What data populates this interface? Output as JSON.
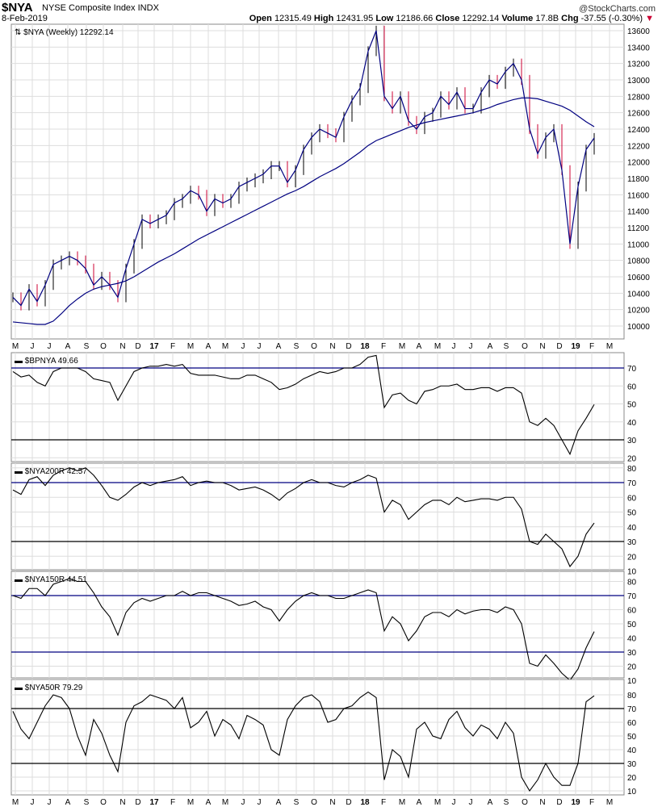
{
  "header": {
    "symbol": "$NYA",
    "name": "NYSE Composite Index",
    "exchange": "INDX",
    "date": "8-Feb-2019",
    "copyright": "@StockCharts.com",
    "open_label": "Open",
    "open": "12315.49",
    "high_label": "High",
    "high": "12431.95",
    "low_label": "Low",
    "low": "12186.66",
    "close_label": "Close",
    "close": "12292.14",
    "volume_label": "Volume",
    "volume": "17.8B",
    "chg_label": "Chg",
    "chg": "-37.55 (-0.30%)",
    "down_color": "#cc0033"
  },
  "chart_data": [
    {
      "type": "line",
      "title": "$NYA (Weekly) 12292.14",
      "x_start": "2016-05",
      "interval": "2 weeks",
      "ylim": [
        9900,
        13700
      ],
      "yticks": [
        10000,
        10200,
        10400,
        10600,
        10800,
        11000,
        11200,
        11400,
        11600,
        11800,
        12000,
        12200,
        12400,
        12600,
        12800,
        13000,
        13200,
        13400,
        13600
      ],
      "series": [
        {
          "name": "$NYA close",
          "color": "#000080",
          "values": [
            10350,
            10250,
            10450,
            10300,
            10500,
            10750,
            10800,
            10850,
            10800,
            10700,
            10500,
            10600,
            10500,
            10350,
            10700,
            11000,
            11300,
            11250,
            11300,
            11350,
            11500,
            11550,
            11650,
            11600,
            11400,
            11550,
            11500,
            11550,
            11700,
            11750,
            11800,
            11850,
            11950,
            11950,
            11750,
            11900,
            12150,
            12300,
            12400,
            12350,
            12300,
            12550,
            12750,
            12900,
            13350,
            13600,
            12800,
            12650,
            12800,
            12500,
            12400,
            12550,
            12600,
            12800,
            12700,
            12850,
            12650,
            12650,
            12850,
            13000,
            12950,
            13100,
            13200,
            13000,
            12400,
            12100,
            12300,
            12400,
            11900,
            11000,
            11700,
            12150,
            12292
          ]
        },
        {
          "name": "40-week MA",
          "color": "#000080",
          "values": [
            10050,
            10040,
            10030,
            10020,
            10020,
            10060,
            10150,
            10250,
            10330,
            10400,
            10450,
            10480,
            10500,
            10520,
            10550,
            10600,
            10660,
            10720,
            10780,
            10830,
            10880,
            10940,
            11000,
            11060,
            11110,
            11160,
            11210,
            11260,
            11310,
            11360,
            11410,
            11460,
            11510,
            11560,
            11610,
            11650,
            11700,
            11760,
            11820,
            11870,
            11920,
            11980,
            12050,
            12120,
            12200,
            12260,
            12300,
            12340,
            12380,
            12420,
            12450,
            12480,
            12500,
            12520,
            12540,
            12560,
            12580,
            12600,
            12630,
            12660,
            12700,
            12730,
            12760,
            12780,
            12780,
            12770,
            12740,
            12710,
            12680,
            12630,
            12560,
            12490,
            12430
          ]
        }
      ]
    },
    {
      "type": "line",
      "title": "$BPNYA 49.66",
      "ylim": [
        18,
        82
      ],
      "yticks": [
        20,
        30,
        40,
        50,
        60,
        70
      ],
      "ref_lines": [
        {
          "value": 70,
          "color": "#000080"
        },
        {
          "value": 30,
          "color": "#000000"
        }
      ],
      "values": [
        68,
        65,
        66,
        62,
        60,
        68,
        70,
        70,
        70,
        68,
        64,
        63,
        62,
        52,
        60,
        68,
        70,
        71,
        71,
        72,
        71,
        72,
        67,
        66,
        66,
        66,
        65,
        64,
        64,
        66,
        66,
        64,
        62,
        58,
        59,
        61,
        64,
        66,
        68,
        67,
        68,
        70,
        70,
        72,
        76,
        77,
        48,
        55,
        56,
        52,
        50,
        57,
        58,
        60,
        60,
        61,
        58,
        58,
        59,
        59,
        57,
        59,
        59,
        56,
        40,
        38,
        42,
        38,
        30,
        22,
        35,
        42,
        49.66
      ]
    },
    {
      "type": "line",
      "title": "$NYA200R 42.57",
      "ylim": [
        8,
        86
      ],
      "yticks": [
        10,
        20,
        30,
        40,
        50,
        60,
        70,
        80
      ],
      "ref_lines": [
        {
          "value": 70,
          "color": "#000080"
        },
        {
          "value": 30,
          "color": "#000000"
        }
      ],
      "values": [
        65,
        62,
        72,
        74,
        68,
        75,
        78,
        80,
        78,
        80,
        75,
        68,
        60,
        58,
        62,
        67,
        70,
        68,
        70,
        71,
        72,
        74,
        68,
        70,
        71,
        70,
        70,
        68,
        65,
        66,
        67,
        65,
        62,
        58,
        63,
        66,
        70,
        72,
        70,
        70,
        68,
        67,
        70,
        72,
        75,
        73,
        50,
        58,
        55,
        45,
        50,
        55,
        58,
        58,
        55,
        60,
        57,
        58,
        59,
        59,
        58,
        60,
        60,
        52,
        30,
        28,
        35,
        30,
        25,
        13,
        20,
        35,
        42.57
      ]
    },
    {
      "type": "line",
      "title": "$NYA150R 44.51",
      "ylim": [
        8,
        86
      ],
      "yticks": [
        10,
        20,
        30,
        40,
        50,
        60,
        70,
        80
      ],
      "ref_lines": [
        {
          "value": 70,
          "color": "#000080"
        },
        {
          "value": 30,
          "color": "#000080"
        }
      ],
      "values": [
        70,
        68,
        75,
        75,
        70,
        78,
        80,
        82,
        80,
        80,
        72,
        62,
        55,
        42,
        58,
        65,
        68,
        66,
        68,
        70,
        70,
        73,
        70,
        72,
        72,
        70,
        68,
        66,
        63,
        64,
        66,
        62,
        60,
        52,
        60,
        66,
        70,
        72,
        70,
        70,
        68,
        68,
        70,
        72,
        74,
        72,
        45,
        55,
        50,
        38,
        45,
        55,
        58,
        58,
        55,
        60,
        57,
        59,
        60,
        60,
        58,
        62,
        60,
        50,
        22,
        20,
        28,
        22,
        15,
        10,
        18,
        33,
        44.51
      ]
    },
    {
      "type": "line",
      "title": "$NYA50R 79.29",
      "ylim": [
        4,
        90
      ],
      "yticks": [
        10,
        20,
        30,
        40,
        50,
        60,
        70,
        80
      ],
      "ref_lines": [
        {
          "value": 70,
          "color": "#000000"
        },
        {
          "value": 30,
          "color": "#000000"
        }
      ],
      "values": [
        68,
        55,
        48,
        60,
        72,
        80,
        78,
        70,
        50,
        36,
        62,
        52,
        36,
        24,
        60,
        72,
        75,
        80,
        78,
        76,
        70,
        78,
        56,
        60,
        68,
        50,
        62,
        58,
        48,
        65,
        62,
        58,
        40,
        36,
        62,
        72,
        78,
        80,
        75,
        60,
        62,
        70,
        72,
        78,
        82,
        78,
        18,
        40,
        35,
        20,
        55,
        60,
        50,
        48,
        62,
        68,
        56,
        50,
        58,
        55,
        48,
        60,
        52,
        20,
        10,
        18,
        30,
        20,
        14,
        14,
        30,
        75,
        79.29
      ]
    }
  ],
  "x_axis": {
    "labels": [
      "M",
      "J",
      "J",
      "A",
      "S",
      "O",
      "N",
      "D",
      "17",
      "F",
      "M",
      "A",
      "M",
      "J",
      "J",
      "A",
      "S",
      "O",
      "N",
      "D",
      "18",
      "F",
      "M",
      "A",
      "M",
      "J",
      "J",
      "A",
      "S",
      "O",
      "N",
      "D",
      "19",
      "F",
      "M"
    ]
  }
}
